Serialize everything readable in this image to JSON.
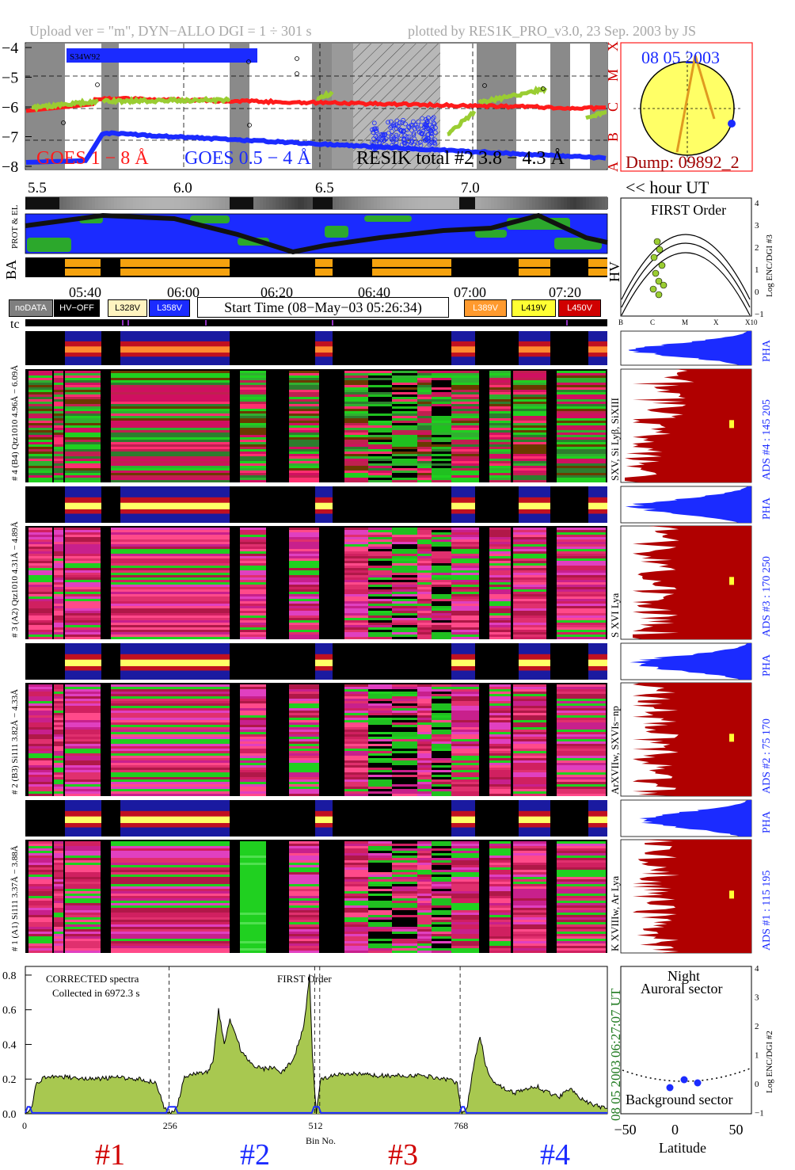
{
  "header": {
    "left": "Upload ver = \"m\", DYN−ALLO DGI =   1 ÷ 301 s",
    "right": "plotted by RES1K_PRO_v3.0, 23 Sep. 2003 by JS"
  },
  "goes_panel": {
    "y_ticks": [
      "−4",
      "−5",
      "−6",
      "−7",
      "−8"
    ],
    "flare_classes": [
      "X",
      "M",
      "C",
      "B",
      "A"
    ],
    "region_label": "S34W92",
    "legend_goes_long": "GOES 1 − 8 Å",
    "legend_goes_short": "GOES 0.5 − 4 Å",
    "legend_resik": "RESIK total #2  3.8 − 4.3 Å",
    "colors": {
      "goes_long": "#ff1b1b",
      "goes_short": "#1b2bff",
      "resik": "#9acd32"
    }
  },
  "sun_panel": {
    "date": "08 05 2003",
    "dump": "Dump: 09892_2"
  },
  "hour_axis": {
    "ticks": [
      "5.5",
      "6.0",
      "6.5",
      "7.0"
    ],
    "unit_label": "<< hour UT"
  },
  "orbit_panel": {
    "label_prot_el": "PROT & EL",
    "label_ba": "BA",
    "label_hv": "HV"
  },
  "first_order_panel": {
    "title": "FIRST Order",
    "ylabel": "Log ENC/DGI #3",
    "y_ticks": [
      "4",
      "3",
      "2",
      "1",
      "0",
      "−1"
    ],
    "x_ticks": [
      "B",
      "C",
      "M",
      "X",
      "X10"
    ]
  },
  "time_axis": {
    "ticks": [
      "05:40",
      "06:00",
      "06:20",
      "06:40",
      "07:00",
      "07:20"
    ]
  },
  "legend_bar": {
    "chips": [
      {
        "label": "noDATA",
        "bg": "#7f7f7f",
        "fg": "#ffffff"
      },
      {
        "label": "HV−OFF",
        "bg": "#000000",
        "fg": "#ffffff"
      },
      {
        "label": "L328V",
        "bg": "#fff4c0",
        "fg": "#000000"
      },
      {
        "label": "L358V",
        "bg": "#1b2bff",
        "fg": "#ffffff"
      },
      {
        "label": "L389V",
        "bg": "#ff9a2e",
        "fg": "#ffffff"
      },
      {
        "label": "L419V",
        "bg": "#ffff33",
        "fg": "#000000"
      },
      {
        "label": "L450V",
        "bg": "#d00000",
        "fg": "#ffffff"
      }
    ],
    "start_time": "Start Time (08−May−03 05:26:34)"
  },
  "tc_label": "tc",
  "detectors": [
    {
      "pha_label": "# 4 (B4) Qtz1010  4.96Å − 6.09Å",
      "ads": "ADS #4 :  145 205",
      "lines": "SXV, Si Lyβ, SiXIII"
    },
    {
      "pha_label": "# 3 (A2) Qtz1010  4.31Å − 4.89Å",
      "ads": "ADS #3 :  170 250",
      "lines": "S XVI Lya"
    },
    {
      "pha_label": "# 2 (B3) Si111  3.82Å − 4.33Å",
      "ads": "ADS #2 :   75 170",
      "lines": "ArXVIIw, SXVIs−np"
    },
    {
      "pha_label": "# 1 (A1) Si111  3.37Å − 3.88Å",
      "ads": "ADS #1 :  115 195",
      "lines": "K XVIIIw, Ar Lya"
    }
  ],
  "pha_label": "PHA",
  "spectrum": {
    "corrected": "CORRECTED spectra",
    "collected": "Collected in  6972.3 s",
    "first_order": "FIRST Order",
    "y_ticks": [
      "0.0",
      "0.2",
      "0.4",
      "0.6",
      "0.8"
    ],
    "x_ticks": [
      "0",
      "256",
      "512",
      "768"
    ],
    "xlabel": "Bin No.",
    "time_stamp": "06:27:07 UT",
    "date_stamp": "08 05 2003",
    "detector_tags": [
      "#1",
      "#2",
      "#3",
      "#4"
    ]
  },
  "latitude_panel": {
    "night": "Night",
    "auroral": "Auroral sector",
    "background": "Background sector",
    "xlabel": "Latitude",
    "x_ticks": [
      "−50",
      "0",
      "50"
    ],
    "ylabel": "Log ENC/DGI #2",
    "y_ticks": [
      "4",
      "3",
      "2",
      "1",
      "0",
      "−1"
    ]
  },
  "chart_data": {
    "type": "line",
    "title": "",
    "xlabel": "Bin No.",
    "ylabel": "",
    "xlim": [
      0,
      1024
    ],
    "ylim": [
      0.0,
      0.85
    ],
    "series": [
      {
        "values_note": "",
        "x": [
          0,
          10,
          20,
          40,
          80,
          120,
          160,
          200,
          230,
          245,
          256,
          266,
          280,
          300,
          320,
          330,
          340,
          350,
          360,
          380,
          400,
          420,
          440,
          450,
          470,
          490,
          500,
          505,
          512,
          520,
          540,
          580,
          620,
          660,
          700,
          740,
          760,
          768,
          778,
          790,
          800,
          810,
          820,
          840,
          860,
          880,
          900,
          920,
          940,
          960,
          980,
          1000,
          1024
        ],
        "values": [
          0.0,
          0.02,
          0.18,
          0.22,
          0.21,
          0.2,
          0.21,
          0.2,
          0.18,
          0.03,
          0.0,
          0.03,
          0.21,
          0.23,
          0.24,
          0.3,
          0.6,
          0.4,
          0.55,
          0.36,
          0.28,
          0.26,
          0.27,
          0.24,
          0.3,
          0.5,
          0.8,
          0.35,
          0.0,
          0.2,
          0.22,
          0.23,
          0.22,
          0.22,
          0.22,
          0.2,
          0.18,
          0.0,
          0.05,
          0.3,
          0.45,
          0.28,
          0.2,
          0.15,
          0.12,
          0.14,
          0.16,
          0.12,
          0.1,
          0.15,
          0.08,
          0.05,
          0.03
        ]
      }
    ]
  }
}
